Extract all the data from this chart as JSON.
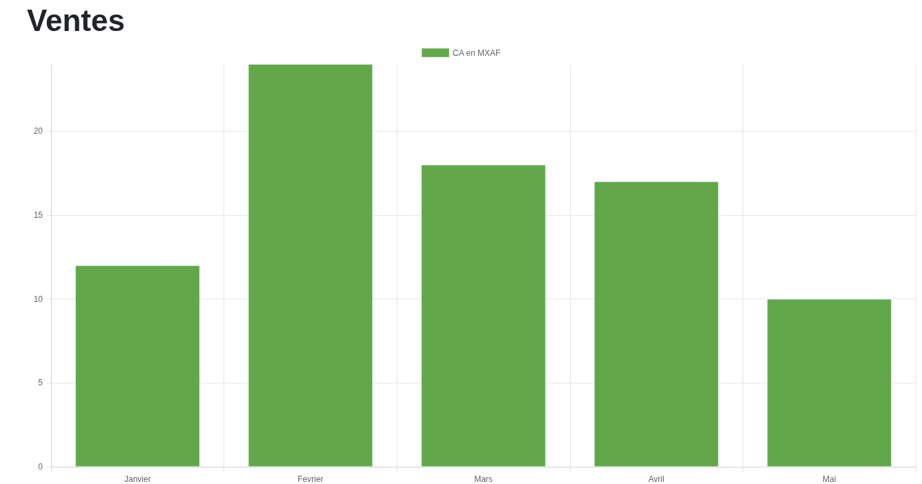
{
  "chart_data": {
    "type": "bar",
    "title": "Ventes",
    "categories": [
      "Janvier",
      "Fevrier",
      "Mars",
      "Avril",
      "Mai"
    ],
    "series": [
      {
        "name": "CA en MXAF",
        "color": "#62a84b",
        "values": [
          12,
          24,
          18,
          17,
          10
        ]
      }
    ],
    "ylim": [
      0,
      24
    ],
    "yticks": [
      0,
      5,
      10,
      15,
      20
    ],
    "grid": true,
    "legend": "top"
  }
}
